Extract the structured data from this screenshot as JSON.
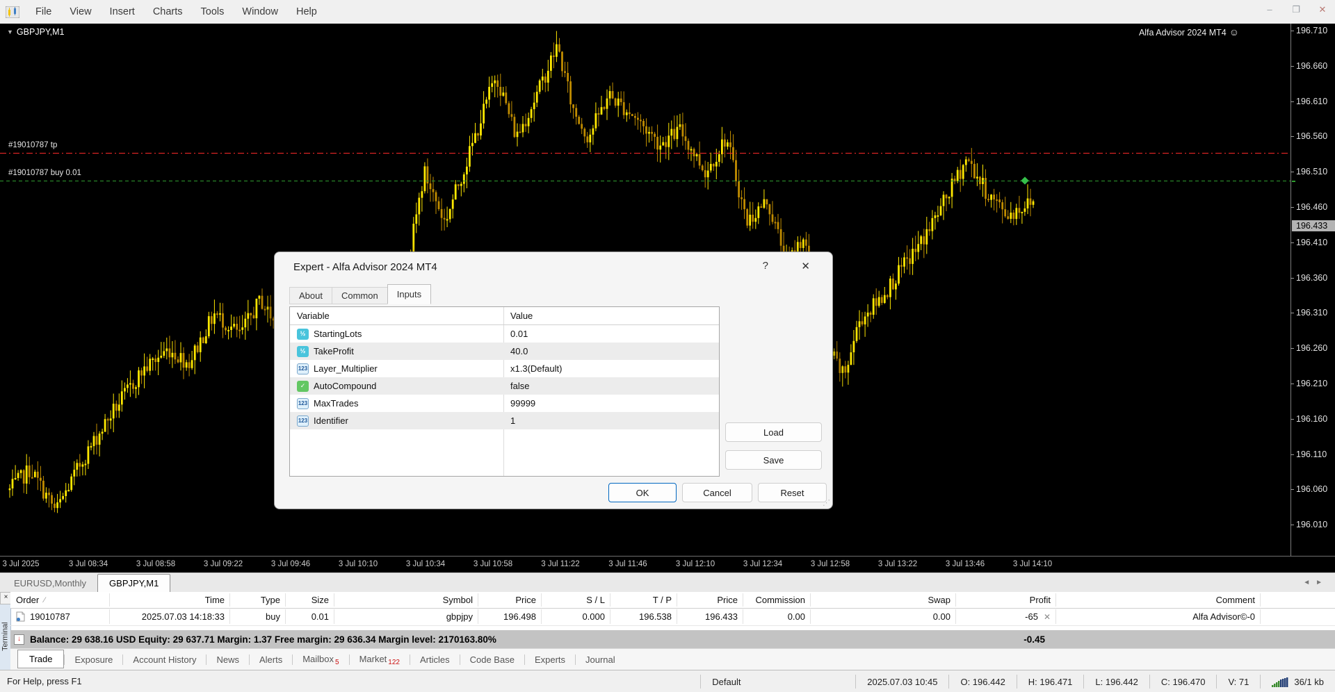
{
  "window": {
    "menus": [
      "File",
      "View",
      "Insert",
      "Charts",
      "Tools",
      "Window",
      "Help"
    ],
    "controls": {
      "minimize": "–",
      "restore": "❐",
      "close": "✕"
    }
  },
  "chart": {
    "symbol_label": "GBPJPY,M1",
    "dropdown_glyph": "▼",
    "ea_label": "Alfa Advisor 2024 MT4",
    "smiley": "☺",
    "tp_line_label": "#19010787 tp",
    "buy_line_label": "#19010787 buy 0.01",
    "current_price": "196.433",
    "price_axis": [
      "196.710",
      "196.660",
      "196.610",
      "196.560",
      "196.510",
      "196.460",
      "196.410",
      "196.360",
      "196.310",
      "196.260",
      "196.210",
      "196.160",
      "196.110",
      "196.060",
      "196.010"
    ],
    "time_axis": [
      "3 Jul 2025",
      "3 Jul 08:34",
      "3 Jul 08:58",
      "3 Jul 09:22",
      "3 Jul 09:46",
      "3 Jul 10:10",
      "3 Jul 10:34",
      "3 Jul 10:58",
      "3 Jul 11:22",
      "3 Jul 11:46",
      "3 Jul 12:10",
      "3 Jul 12:34",
      "3 Jul 12:58",
      "3 Jul 13:22",
      "3 Jul 13:46",
      "3 Jul 14:10"
    ],
    "colors": {
      "bull": "#ffe800",
      "bear": "#c08c00",
      "tp_line": "#ff2a2a",
      "buy_line": "#2f9e2f",
      "background": "#000000"
    }
  },
  "chart_data": {
    "type": "candlestick",
    "symbol": "GBPJPY",
    "timeframe": "M1",
    "visible_price_range": [
      196.01,
      196.71
    ],
    "price_grid_step": 0.05,
    "levels": {
      "take_profit": 196.538,
      "buy_entry": 196.498,
      "current_bid": 196.433
    },
    "path_waypoints": [
      [
        0.0,
        196.06
      ],
      [
        0.02,
        196.09
      ],
      [
        0.045,
        196.03
      ],
      [
        0.07,
        196.1
      ],
      [
        0.1,
        196.17
      ],
      [
        0.13,
        196.23
      ],
      [
        0.155,
        196.26
      ],
      [
        0.175,
        196.24
      ],
      [
        0.2,
        196.31
      ],
      [
        0.225,
        196.28
      ],
      [
        0.245,
        196.33
      ],
      [
        0.27,
        196.27
      ],
      [
        0.3,
        196.17
      ],
      [
        0.325,
        196.15
      ],
      [
        0.345,
        196.23
      ],
      [
        0.365,
        196.19
      ],
      [
        0.385,
        196.35
      ],
      [
        0.405,
        196.51
      ],
      [
        0.425,
        196.44
      ],
      [
        0.45,
        196.54
      ],
      [
        0.475,
        196.65
      ],
      [
        0.495,
        196.56
      ],
      [
        0.515,
        196.62
      ],
      [
        0.535,
        196.69
      ],
      [
        0.55,
        196.6
      ],
      [
        0.565,
        196.56
      ],
      [
        0.585,
        196.62
      ],
      [
        0.61,
        196.59
      ],
      [
        0.635,
        196.55
      ],
      [
        0.655,
        196.57
      ],
      [
        0.68,
        196.51
      ],
      [
        0.7,
        196.56
      ],
      [
        0.72,
        196.44
      ],
      [
        0.74,
        196.47
      ],
      [
        0.76,
        196.38
      ],
      [
        0.775,
        196.42
      ],
      [
        0.8,
        196.26
      ],
      [
        0.815,
        196.22
      ],
      [
        0.83,
        196.3
      ],
      [
        0.85,
        196.33
      ],
      [
        0.87,
        196.37
      ],
      [
        0.89,
        196.41
      ],
      [
        0.91,
        196.46
      ],
      [
        0.935,
        196.53
      ],
      [
        0.955,
        196.48
      ],
      [
        0.975,
        196.45
      ],
      [
        1.0,
        196.47
      ]
    ]
  },
  "dialog": {
    "title": "Expert - Alfa Advisor 2024 MT4",
    "help_glyph": "?",
    "close_glyph": "✕",
    "tabs": [
      "About",
      "Common",
      "Inputs"
    ],
    "active_tab": "Inputs",
    "table": {
      "headers": [
        "Variable",
        "Value"
      ],
      "rows": [
        {
          "icon": "half",
          "variable": "StartingLots",
          "value": "0.01"
        },
        {
          "icon": "half",
          "variable": "TakeProfit",
          "value": "40.0"
        },
        {
          "icon": "int",
          "variable": "Layer_Multiplier",
          "value": "x1.3(Default)"
        },
        {
          "icon": "bool",
          "variable": "AutoCompound",
          "value": "false"
        },
        {
          "icon": "int",
          "variable": "MaxTrades",
          "value": "99999"
        },
        {
          "icon": "int",
          "variable": "Identifier",
          "value": "1"
        }
      ]
    },
    "buttons": {
      "load": "Load",
      "save": "Save",
      "ok": "OK",
      "cancel": "Cancel",
      "reset": "Reset"
    }
  },
  "chart_tabs": {
    "tabs": [
      "EURUSD,Monthly",
      "GBPJPY,M1"
    ],
    "active": "GBPJPY,M1",
    "scroll_left": "◄",
    "scroll_right": "►"
  },
  "terminal": {
    "close_glyph": "×",
    "side_label": "Terminal",
    "columns": [
      "Order",
      "Time",
      "Type",
      "Size",
      "Symbol",
      "Price",
      "S / L",
      "T / P",
      "Price",
      "Commission",
      "Swap",
      "Profit",
      "Comment"
    ],
    "sort_glyph": "∕",
    "order_row": [
      "19010787",
      "2025.07.03 14:18:33",
      "buy",
      "0.01",
      "gbpjpy",
      "196.498",
      "0.000",
      "196.538",
      "196.433",
      "0.00",
      "0.00",
      "-65",
      "Alfa Advisor©-0"
    ],
    "close_position_glyph": "✕",
    "balance_line": "Balance: 29 638.16 USD  Equity: 29 637.71  Margin: 1.37  Free margin: 29 636.34  Margin level: 2170163.80%",
    "total_profit": "-0.45",
    "tabs": [
      {
        "label": "Trade",
        "badge": "",
        "active": true
      },
      {
        "label": "Exposure",
        "badge": ""
      },
      {
        "label": "Account History",
        "badge": ""
      },
      {
        "label": "News",
        "badge": ""
      },
      {
        "label": "Alerts",
        "badge": ""
      },
      {
        "label": "Mailbox",
        "badge": "5"
      },
      {
        "label": "Market",
        "badge": "122"
      },
      {
        "label": "Articles",
        "badge": ""
      },
      {
        "label": "Code Base",
        "badge": ""
      },
      {
        "label": "Experts",
        "badge": ""
      },
      {
        "label": "Journal",
        "badge": ""
      }
    ]
  },
  "status_bar": {
    "help": "For Help, press F1",
    "profile": "Default",
    "time": "2025.07.03 10:45",
    "ohlcv": [
      "O: 196.442",
      "H: 196.471",
      "L: 196.442",
      "C: 196.470",
      "V: 71"
    ],
    "connection": "36/1 kb"
  }
}
